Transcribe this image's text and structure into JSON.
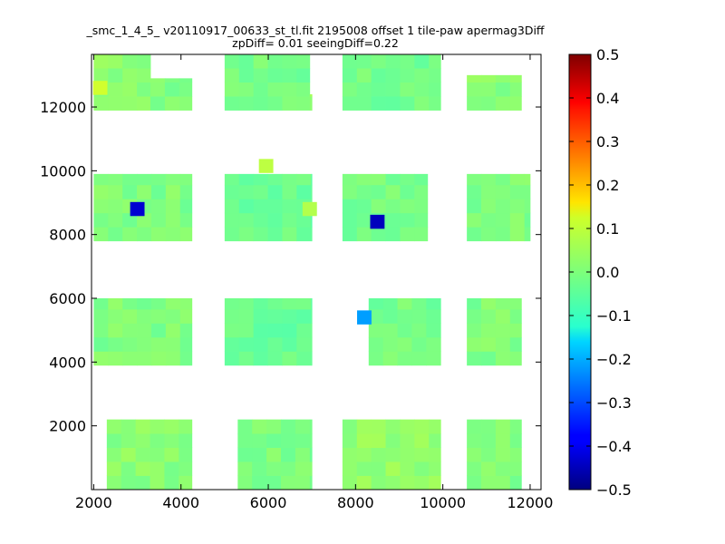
{
  "chart_data": {
    "type": "heatmap",
    "title_lines": [
      "_smc_1_4_5_ v20110917_00633_st_tl.fit 2195008 offset 1 tile-paw apermag3Diff",
      "zpDiff= 0.01 seeingDiff=0.22"
    ],
    "xlabel": "",
    "ylabel": "",
    "xlim": [
      1950,
      12250
    ],
    "ylim": [
      0,
      13650
    ],
    "x_ticks": [
      2000,
      4000,
      6000,
      8000,
      10000,
      12000
    ],
    "y_ticks": [
      2000,
      4000,
      6000,
      8000,
      10000,
      12000
    ],
    "colorbar": {
      "min": -0.5,
      "max": 0.5,
      "colormap": "jet",
      "ticks": [
        "0.5",
        "0.4",
        "0.3",
        "0.2",
        "0.1",
        "0.0",
        "−0.1",
        "−0.2",
        "−0.3",
        "−0.4",
        "−0.5"
      ]
    },
    "grid": false,
    "cell_size": [
      330,
      440
    ],
    "special_cells": [
      {
        "x": 3000,
        "y": 8800,
        "value": -0.42
      },
      {
        "x": 8500,
        "y": 8400,
        "value": -0.44
      },
      {
        "x": 8200,
        "y": 5400,
        "value": -0.22
      },
      {
        "x": 2150,
        "y": 12600,
        "value": 0.08
      },
      {
        "x": 5950,
        "y": 10150,
        "value": 0.06
      },
      {
        "x": 6950,
        "y": 8800,
        "value": 0.05
      }
    ],
    "tile_blocks": [
      {
        "x": [
          2000,
          3300
        ],
        "y": [
          11900,
          13650
        ],
        "value": 0.01
      },
      {
        "x": [
          3300,
          4250
        ],
        "y": [
          11900,
          12900
        ],
        "value": 0.0
      },
      {
        "x": [
          5000,
          6950
        ],
        "y": [
          11900,
          13650
        ],
        "value": -0.01
      },
      {
        "x": [
          6950,
          7000
        ],
        "y": [
          11900,
          12400
        ],
        "value": 0.03
      },
      {
        "x": [
          7700,
          9950
        ],
        "y": [
          11900,
          13650
        ],
        "value": -0.01
      },
      {
        "x": [
          10550,
          11800
        ],
        "y": [
          11900,
          13000
        ],
        "value": 0.01
      },
      {
        "x": [
          2000,
          4250
        ],
        "y": [
          7800,
          9900
        ],
        "value": 0.0
      },
      {
        "x": [
          5000,
          7000
        ],
        "y": [
          7800,
          9900
        ],
        "value": -0.02
      },
      {
        "x": [
          7700,
          9650
        ],
        "y": [
          7800,
          9900
        ],
        "value": -0.01
      },
      {
        "x": [
          10550,
          12000
        ],
        "y": [
          7800,
          9900
        ],
        "value": 0.0
      },
      {
        "x": [
          2000,
          4250
        ],
        "y": [
          3900,
          6000
        ],
        "value": 0.0
      },
      {
        "x": [
          5000,
          7000
        ],
        "y": [
          3900,
          6000
        ],
        "value": -0.02
      },
      {
        "x": [
          8300,
          9950
        ],
        "y": [
          3900,
          6000
        ],
        "value": -0.01
      },
      {
        "x": [
          10550,
          11800
        ],
        "y": [
          3900,
          6000
        ],
        "value": 0.0
      },
      {
        "x": [
          2300,
          4250
        ],
        "y": [
          0,
          2200
        ],
        "value": 0.01
      },
      {
        "x": [
          5300,
          7000
        ],
        "y": [
          0,
          2200
        ],
        "value": 0.0
      },
      {
        "x": [
          7700,
          9950
        ],
        "y": [
          0,
          2200
        ],
        "value": 0.02
      },
      {
        "x": [
          10550,
          11800
        ],
        "y": [
          0,
          2200
        ],
        "value": 0.0
      }
    ]
  }
}
